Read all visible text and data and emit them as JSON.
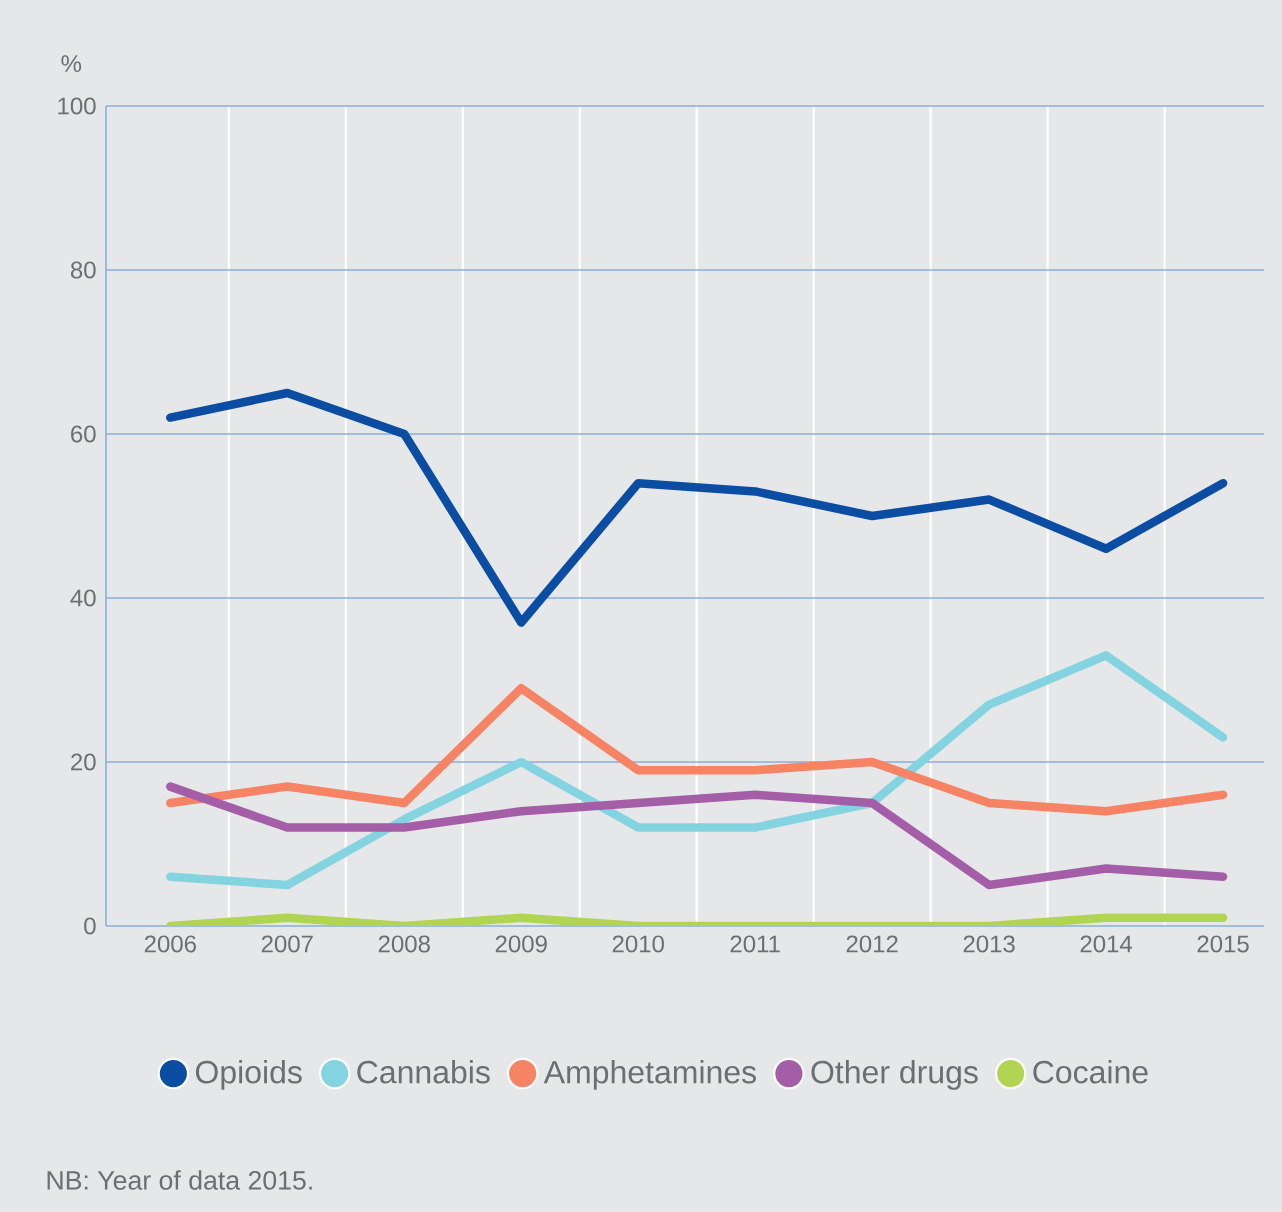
{
  "chart_data": {
    "type": "line",
    "ylabel": "%",
    "categories": [
      "2006",
      "2007",
      "2008",
      "2009",
      "2010",
      "2011",
      "2012",
      "2013",
      "2014",
      "2015"
    ],
    "series": [
      {
        "name": "Opioids",
        "color": "#0b4da2",
        "values": [
          62,
          65,
          60,
          37,
          54,
          53,
          50,
          52,
          46,
          54
        ]
      },
      {
        "name": "Cannabis",
        "color": "#84d3e0",
        "values": [
          6,
          5,
          13,
          20,
          12,
          12,
          15,
          27,
          33,
          23
        ]
      },
      {
        "name": "Amphetamines",
        "color": "#f58364",
        "values": [
          15,
          17,
          15,
          29,
          19,
          19,
          20,
          15,
          14,
          16
        ]
      },
      {
        "name": "Other drugs",
        "color": "#a45ea8",
        "values": [
          17,
          12,
          12,
          14,
          15,
          16,
          15,
          5,
          7,
          6
        ]
      },
      {
        "name": "Cocaine",
        "color": "#b1d553",
        "values": [
          0,
          1,
          0,
          1,
          0,
          0,
          0,
          0,
          1,
          1
        ]
      }
    ],
    "ylim": [
      0,
      100
    ],
    "yticks": [
      0,
      20,
      40,
      60,
      80,
      100
    ],
    "grid": true,
    "legend": "bottom",
    "annotations": [
      "NB: Year of data 2015."
    ]
  }
}
